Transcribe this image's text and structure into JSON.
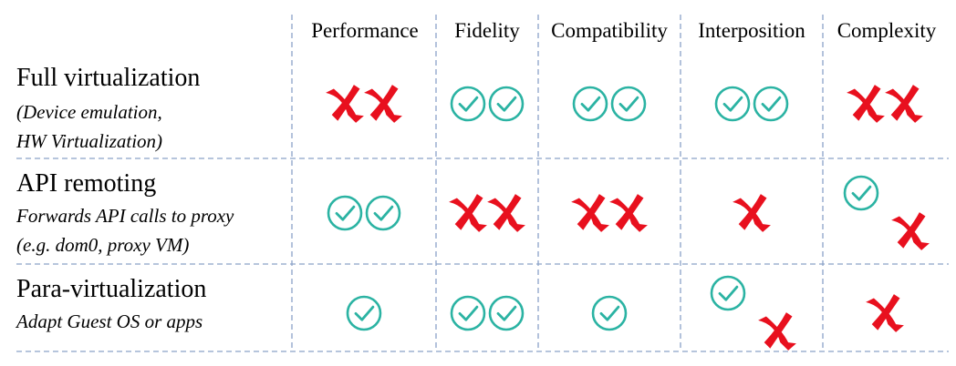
{
  "colors": {
    "check": "#2bb3a3",
    "cross": "#e8101e",
    "grid": "#8aa2c8"
  },
  "columns": [
    "Performance",
    "Fidelity",
    "Compatibility",
    "Interposition",
    "Complexity"
  ],
  "rows": [
    {
      "title": "Full virtualization",
      "subtitle_lines": [
        "(Device emulation,",
        "HW Virtualization)"
      ],
      "cells": [
        {
          "column": "Performance",
          "marks": [
            "cross",
            "cross"
          ]
        },
        {
          "column": "Fidelity",
          "marks": [
            "check",
            "check"
          ]
        },
        {
          "column": "Compatibility",
          "marks": [
            "check",
            "check"
          ]
        },
        {
          "column": "Interposition",
          "marks": [
            "check",
            "check"
          ]
        },
        {
          "column": "Complexity",
          "marks": [
            "cross",
            "cross"
          ]
        }
      ]
    },
    {
      "title": "API remoting",
      "subtitle_lines": [
        "Forwards API calls to proxy",
        "(e.g. dom0, proxy VM)"
      ],
      "cells": [
        {
          "column": "Performance",
          "marks": [
            "check",
            "check"
          ]
        },
        {
          "column": "Fidelity",
          "marks": [
            "cross",
            "cross"
          ]
        },
        {
          "column": "Compatibility",
          "marks": [
            "cross",
            "cross"
          ]
        },
        {
          "column": "Interposition",
          "marks": [
            "cross"
          ]
        },
        {
          "column": "Complexity",
          "marks": [
            "check",
            "cross"
          ],
          "arrangement": "diagonal"
        }
      ]
    },
    {
      "title": "Para-virtualization",
      "subtitle_lines": [
        "Adapt Guest OS or apps"
      ],
      "cells": [
        {
          "column": "Performance",
          "marks": [
            "check"
          ]
        },
        {
          "column": "Fidelity",
          "marks": [
            "check",
            "check"
          ]
        },
        {
          "column": "Compatibility",
          "marks": [
            "check"
          ]
        },
        {
          "column": "Interposition",
          "marks": [
            "check",
            "cross"
          ],
          "arrangement": "diagonal"
        },
        {
          "column": "Complexity",
          "marks": [
            "cross"
          ]
        }
      ]
    }
  ]
}
